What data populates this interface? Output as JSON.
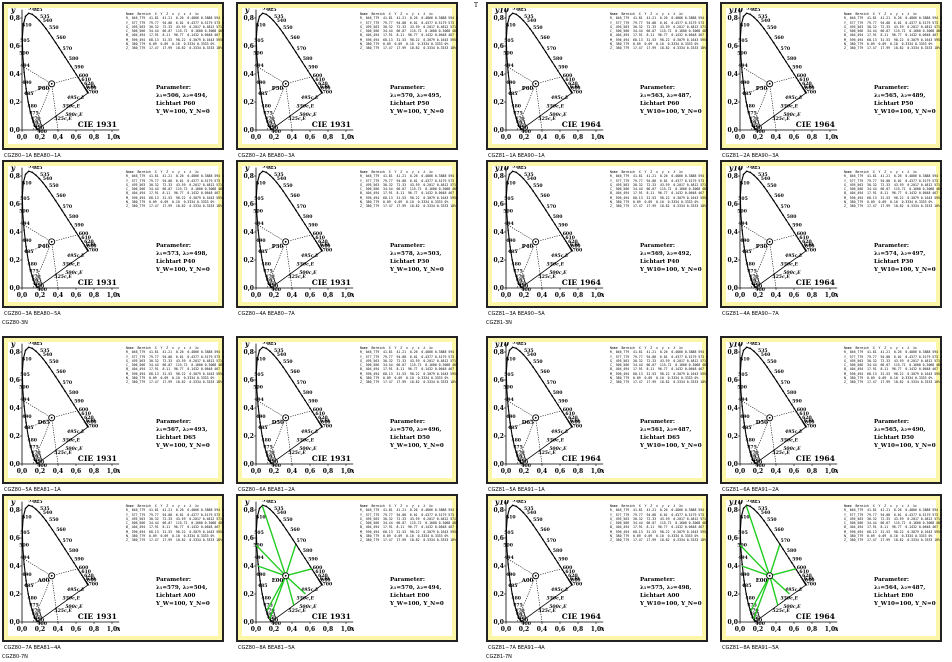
{
  "corner_mark": "T",
  "quadrants": [
    {
      "label": "CGZ80-3N",
      "system": "CIE 1931",
      "axis_y": "y",
      "axis_x": "x",
      "ticks_x": [
        "0,0",
        "0,2",
        "0,4",
        "0,6",
        "0,8",
        "1,0"
      ],
      "ticks_y": [
        "0,0",
        "0,2",
        "0,4",
        "0,6",
        "0,8"
      ],
      "panels": [
        {
          "title": "CGZ80−1A  BEA80−1A",
          "lambda": "λ₁=506, λ₂=494,",
          "light": "Lichtart P60",
          "ylimit": "Y_W=100, Y_N=0",
          "center": "P60"
        },
        {
          "title": "CGZ80−2A  BEA80−3A",
          "lambda": "λ₁=570, λ₂=495,",
          "light": "Lichtart P50",
          "ylimit": "Y_W=100, Y_N=0",
          "center": "P50"
        },
        {
          "title": "CGZ80−3A  BEA80−5A",
          "lambda": "λ₁=573, λ₂=498,",
          "light": "Lichtart P40",
          "ylimit": "Y_W=100, Y_N=0",
          "center": "P40"
        },
        {
          "title": "CGZ80−4A  BEA80−7A",
          "lambda": "λ₁=578, λ₂=503,",
          "light": "Lichtart P30",
          "ylimit": "Y_W=100, Y_N=0",
          "center": "P30"
        }
      ]
    },
    {
      "label": "CGZ81-3N",
      "system": "CIE 1964",
      "axis_y": "y10",
      "axis_x": "x10",
      "ticks_x": [
        "0,0",
        "0,2",
        "0,4",
        "0,6",
        "0,8",
        "1,0"
      ],
      "ticks_y": [
        "0,0",
        "0,2",
        "0,4",
        "0,6",
        "0,8"
      ],
      "panels": [
        {
          "title": "CGZ81−1A  BEA90−1A",
          "lambda": "λ₁=563, λ₂=487,",
          "light": "Lichtart P60",
          "ylimit": "Y_W10=100, Y_N=0",
          "center": "P60"
        },
        {
          "title": "CGZ81−2A  BEA90−3A",
          "lambda": "λ₁=565, λ₂=489,",
          "light": "Lichtart P50",
          "ylimit": "Y_W10=100, Y_N=0",
          "center": "P50"
        },
        {
          "title": "CGZ81−3A  BEA90−5A",
          "lambda": "λ₁=569, λ₂=492,",
          "light": "Lichtart P40",
          "ylimit": "Y_W10=100, Y_N=0",
          "center": "P40"
        },
        {
          "title": "CGZ81−4A  BEA90−7A",
          "lambda": "λ₁=574, λ₂=497,",
          "light": "Lichtart P30",
          "ylimit": "Y_W10=100, Y_N=0",
          "center": "P30"
        }
      ]
    },
    {
      "label": "CGZ80-7N",
      "system": "CIE 1931",
      "axis_y": "y",
      "axis_x": "x",
      "ticks_x": [
        "0,0",
        "0,2",
        "0,4",
        "0,6",
        "0,8",
        "1,0"
      ],
      "ticks_y": [
        "0,0",
        "0,2",
        "0,4",
        "0,6",
        "0,8"
      ],
      "panels": [
        {
          "title": "CGZ80−5A  BEA81−1A",
          "lambda": "λ₁=567, λ₂=493,",
          "light": "Lichtart D65",
          "ylimit": "Y_W=100, Y_N=0",
          "center": "D65"
        },
        {
          "title": "CGZ80−6A  BEA81−2A",
          "lambda": "λ₁=570, λ₂=496,",
          "light": "Lichtart D50",
          "ylimit": "Y_W=100, Y_N=0",
          "center": "D50"
        },
        {
          "title": "CGZ80−7A  BEA81−4A",
          "lambda": "λ₁=579, λ₂=504,",
          "light": "Lichtart A00",
          "ylimit": "Y_W=100, Y_N=0",
          "center": "A00"
        },
        {
          "title": "CGZ80−8A  BEA81−5A",
          "lambda": "λ₁=570, λ₂=494,",
          "light": "Lichtart E00",
          "ylimit": "Y_W=100, Y_N=0",
          "center": "E00",
          "green": true
        }
      ]
    },
    {
      "label": "CGZ81-7N",
      "system": "CIE 1964",
      "axis_y": "y10",
      "axis_x": "x10",
      "ticks_x": [
        "0,0",
        "0,2",
        "0,4",
        "0,6",
        "0,8",
        "1,0"
      ],
      "ticks_y": [
        "0,0",
        "0,2",
        "0,4",
        "0,6",
        "0,8"
      ],
      "panels": [
        {
          "title": "CGZ81−5A  BEA91−1A",
          "lambda": "λ₁=561, λ₂=487,",
          "light": "Lichtart D65",
          "ylimit": "Y_W10=100, Y_N=0",
          "center": "D65"
        },
        {
          "title": "CGZ81−6A  BEA91−2A",
          "lambda": "λ₁=565, λ₂=490,",
          "light": "Lichtart D50",
          "ylimit": "Y_W10=100, Y_N=0",
          "center": "D50"
        },
        {
          "title": "CGZ81−7A  BEA91−4A",
          "lambda": "λ₁=575, λ₂=498,",
          "light": "Lichtart A00",
          "ylimit": "Y_W10=100, Y_N=0",
          "center": "A00"
        },
        {
          "title": "CGZ81−8A  BEA91−5A",
          "lambda": "λ₁=564, λ₂=487,",
          "light": "Lichtart E00",
          "ylimit": "Y_W10=100, Y_N=0",
          "center": "E00",
          "green": true
        }
      ]
    }
  ],
  "common": {
    "param_label": "Parameter:",
    "wavelength_labels": [
      "380",
      "400",
      "450",
      "460",
      "465",
      "470",
      "475",
      "480",
      "485",
      "490",
      "494",
      "500",
      "505",
      "510",
      "520",
      "525",
      "530",
      "535",
      "540",
      "550",
      "560",
      "570",
      "580",
      "590",
      "600",
      "610",
      "620",
      "630",
      "640",
      "650",
      "700"
    ],
    "complement_labels": [
      "550c,E",
      "500c,E",
      "525c,E",
      "495c,E"
    ],
    "table_header": "Name  Bereich  X  Y  Z  x  y  z  λ  λc",
    "table_rows": [
      "R_ 046_779  41.81  41.21  0.26  0.4866 0.3888 594 489",
      "Y_ 577_779  79.77  94.08  6.01  0.4377 0.5179 573 468",
      "G_ 495_563  30.32  72.33  43.59  0.2017 0.4812 571 ...",
      "C_ 506_566  34.44  66.07  115.72  0.1600 0.3068 489 996",
      "B_ 404_494  17.91  8.11  96.77  0.1432 0.0648 467 571",
      "M_ 596_494  68.13  31.53  98.22  0.3079 0.1643 595c 618",
      "N_ 380_779  0.09  0.09  0.10  0.3334 0.3333 0%",
      "Z_ 380_779  17.47  17.99  18.82  0.3334 0.3333 18%"
    ]
  }
}
